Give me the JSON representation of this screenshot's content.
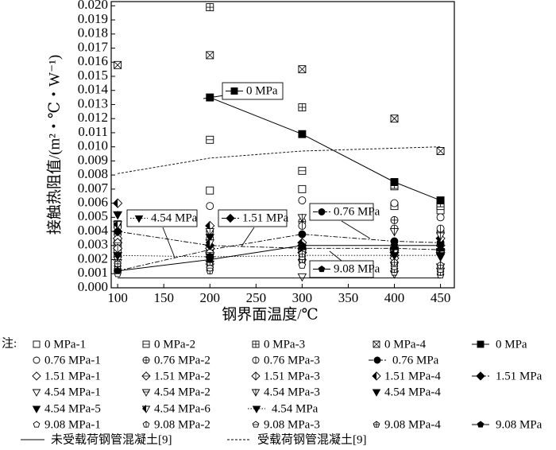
{
  "chart_data": {
    "type": "scatter",
    "xlabel": "钢界面温度/℃",
    "ylabel": "接触热阻值/(m²・℃・W⁻¹)",
    "legend_prefix": "注:",
    "xlim": [
      93,
      465
    ],
    "ylim": [
      0,
      0.0203
    ],
    "xticks": [
      100,
      150,
      200,
      250,
      300,
      350,
      400,
      450
    ],
    "yticks": [
      {
        "value": 0,
        "label": "0.000"
      },
      {
        "value": 0.001,
        "label": "0.001"
      },
      {
        "value": 0.002,
        "label": "0.002"
      },
      {
        "value": 0.003,
        "label": "0.003"
      },
      {
        "value": 0.004,
        "label": "0.004"
      },
      {
        "value": 0.005,
        "label": "0.005"
      },
      {
        "value": 0.006,
        "label": "0.006"
      },
      {
        "value": 0.007,
        "label": "0.007"
      },
      {
        "value": 0.008,
        "label": "0.008"
      },
      {
        "value": 0.009,
        "label": "0.009"
      },
      {
        "value": 0.01,
        "label": "0.010"
      },
      {
        "value": 0.011,
        "label": "0.011"
      },
      {
        "value": 0.012,
        "label": "0.012"
      },
      {
        "value": 0.013,
        "label": "0.013"
      },
      {
        "value": 0.014,
        "label": "0.014"
      },
      {
        "value": 0.015,
        "label": "0.015"
      },
      {
        "value": 0.016,
        "label": "0.016"
      },
      {
        "value": 0.017,
        "label": "0.017"
      },
      {
        "value": 0.018,
        "label": "0.018"
      },
      {
        "value": 0.019,
        "label": "0.019"
      },
      {
        "value": 0.02,
        "label": "0.020"
      }
    ],
    "x": [
      100,
      200,
      300,
      400,
      450
    ],
    "series": [
      {
        "name": "0 MPa-1",
        "marker": "square",
        "fill": "none",
        "values": [
          0.0025,
          0.0069,
          0.007,
          0.0058,
          0.0055
        ]
      },
      {
        "name": "0 MPa-2",
        "marker": "square",
        "fill": "hline",
        "values": [
          0.0045,
          0.0105,
          0.0083,
          0.0072,
          0.0058
        ]
      },
      {
        "name": "0 MPa-3",
        "marker": "square",
        "fill": "plus",
        "values": [
          0.003,
          0.0199,
          0.0128,
          0.0073,
          0.006
        ]
      },
      {
        "name": "0 MPa-4",
        "marker": "square",
        "fill": "cross",
        "values": [
          0.0158,
          0.0165,
          0.0155,
          0.012,
          0.0097
        ]
      },
      {
        "name": "0 MPa",
        "marker": "square",
        "fill": "solid",
        "line": "solid",
        "values": [
          null,
          0.0135,
          0.0109,
          0.0075,
          0.0062
        ]
      },
      {
        "name": "0.76 MPa-1",
        "marker": "circle",
        "fill": "none",
        "values": [
          0.0043,
          0.0058,
          0.0062,
          0.006,
          0.005
        ]
      },
      {
        "name": "0.76 MPa-2",
        "marker": "circle",
        "fill": "plus",
        "values": [
          0.0038,
          0.004,
          0.0047,
          0.0048,
          0.004
        ]
      },
      {
        "name": "0.76 MPa-3",
        "marker": "circle",
        "fill": "vline",
        "values": [
          0.0033,
          0.0035,
          0.0044,
          0.0042,
          0.0042
        ]
      },
      {
        "name": "0.76 MPa",
        "marker": "circle",
        "fill": "solid",
        "line": "dashdot",
        "values": [
          0.0012,
          0.0027,
          0.0038,
          0.0033,
          0.0032
        ]
      },
      {
        "name": "1.51 MPa-1",
        "marker": "diamond",
        "fill": "none",
        "values": [
          0.0035,
          0.0028,
          0.003,
          0.0025,
          0.003
        ]
      },
      {
        "name": "1.51 MPa-2",
        "marker": "diamond",
        "fill": "hline",
        "values": [
          0.0032,
          0.0025,
          0.0028,
          0.0023,
          0.0027
        ]
      },
      {
        "name": "1.51 MPa-3",
        "marker": "diamond",
        "fill": "vline",
        "values": [
          0.0028,
          0.0022,
          0.0025,
          0.0021,
          0.0025
        ]
      },
      {
        "name": "1.51 MPa-4",
        "marker": "diamond",
        "fill": "half",
        "values": [
          0.006,
          0.0044,
          0.0032,
          0.0027,
          0.0035
        ]
      },
      {
        "name": "1.51 MPa",
        "marker": "diamond",
        "fill": "solid",
        "line": "dashdot",
        "values": [
          0.004,
          0.003,
          0.0028,
          0.0028,
          0.0027
        ]
      },
      {
        "name": "4.54 MPa-1",
        "marker": "triangle",
        "fill": "none",
        "values": [
          0.0018,
          0.0015,
          0.0008,
          0.001,
          0.0012
        ]
      },
      {
        "name": "4.54 MPa-2",
        "marker": "triangle",
        "fill": "hline",
        "values": [
          0.002,
          0.0017,
          0.0018,
          0.0016,
          0.0015
        ]
      },
      {
        "name": "4.54 MPa-3",
        "marker": "triangle",
        "fill": "vline",
        "values": [
          0.0052,
          0.004,
          0.005,
          0.004,
          0.0037
        ]
      },
      {
        "name": "4.54 MPa-4",
        "marker": "triangle",
        "fill": "solid",
        "values": [
          0.0023,
          0.002,
          0.0026,
          0.0024,
          0.0022
        ]
      },
      {
        "name": "4.54 MPa-5",
        "marker": "triangle",
        "fill": "solid",
        "values": [
          0.0052,
          0.0036,
          0.0028,
          0.0027,
          0.0026
        ]
      },
      {
        "name": "4.54 MPa-6",
        "marker": "triangle",
        "fill": "half",
        "values": [
          0.0045,
          0.0032,
          0.0025,
          0.0025,
          0.0024
        ]
      },
      {
        "name": "4.54 MPa",
        "marker": "triangle",
        "fill": "solid",
        "line": "dotted",
        "values": [
          0.0023,
          0.0022,
          0.0023,
          0.0023,
          0.0023
        ]
      },
      {
        "name": "9.08 MPa-1",
        "marker": "pentagon",
        "fill": "none",
        "values": [
          0.001,
          0.0014,
          0.0016,
          0.0011,
          0.0009
        ]
      },
      {
        "name": "9.08 MPa-2",
        "marker": "pentagon",
        "fill": "vline",
        "values": [
          0.0013,
          0.0012,
          0.002,
          0.0013,
          0.0011
        ]
      },
      {
        "name": "9.08 MPa-3",
        "marker": "pentagon",
        "fill": "hline",
        "values": [
          0.0015,
          0.0014,
          0.0022,
          0.0015,
          0.0013
        ]
      },
      {
        "name": "9.08 MPa-4",
        "marker": "pentagon",
        "fill": "plus",
        "values": [
          0.0017,
          0.0018,
          0.0024,
          0.0018,
          0.0016
        ]
      },
      {
        "name": "9.08 MPa",
        "marker": "pentagon",
        "fill": "solid",
        "line": "solid",
        "values": [
          0.0012,
          0.002,
          0.003,
          0.003,
          0.003
        ]
      },
      {
        "name": "未受载荷钢管混凝土[9]",
        "line": "solid",
        "values": [
          0.0007,
          0.0007,
          0.0007,
          0.0007,
          0.0007
        ]
      },
      {
        "name": "受载荷钢管混凝土[9]",
        "line": "dashed",
        "values": [
          0.0081,
          0.0092,
          0.0097,
          0.0099,
          0.01
        ]
      }
    ],
    "annotations": [
      "0 MPa",
      "0.76 MPa",
      "1.51 MPa",
      "4.54 MPa",
      "9.08 MPa"
    ]
  }
}
